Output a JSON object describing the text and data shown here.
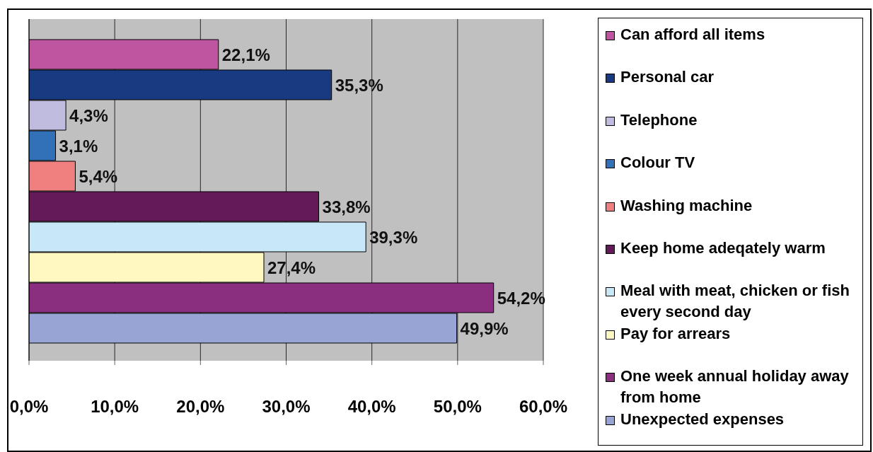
{
  "chart_data": {
    "type": "bar",
    "orientation": "horizontal",
    "categories": [
      null
    ],
    "series": [
      {
        "name": "Can afford all items",
        "color": "#bf55a0",
        "values": [
          22.1
        ],
        "value_labels": [
          "22,1%"
        ]
      },
      {
        "name": "Personal car",
        "color": "#173a80",
        "values": [
          35.3
        ],
        "value_labels": [
          "35,3%"
        ]
      },
      {
        "name": "Telephone",
        "color": "#c0bce0",
        "values": [
          4.3
        ],
        "value_labels": [
          "4,3%"
        ]
      },
      {
        "name": "Colour TV",
        "color": "#3270b8",
        "values": [
          3.1
        ],
        "value_labels": [
          "3,1%"
        ]
      },
      {
        "name": "Washing machine",
        "color": "#f08080",
        "values": [
          5.4
        ],
        "value_labels": [
          "5,4%"
        ]
      },
      {
        "name": "Keep home adeqately warm",
        "color": "#641a58",
        "values": [
          33.8
        ],
        "value_labels": [
          "33,8%"
        ]
      },
      {
        "name": "Meal with meat, chicken or fish every second day",
        "color": "#c8e8f8",
        "values": [
          39.3
        ],
        "value_labels": [
          "39,3%"
        ]
      },
      {
        "name": "Pay for arrears",
        "color": "#fff8c0",
        "values": [
          27.4
        ],
        "value_labels": [
          "27,4%"
        ]
      },
      {
        "name": "One week annual holiday away from home",
        "color": "#8a2e80",
        "values": [
          54.2
        ],
        "value_labels": [
          "54,2%"
        ]
      },
      {
        "name": "Unexpected expenses",
        "color": "#98a4d4",
        "values": [
          49.9
        ],
        "value_labels": [
          "49,9%"
        ]
      }
    ],
    "xlim": [
      0,
      60
    ],
    "xticks": [
      {
        "value": 0,
        "label": "0,0%"
      },
      {
        "value": 10,
        "label": "10,0%"
      },
      {
        "value": 20,
        "label": "20,0%"
      },
      {
        "value": 30,
        "label": "30,0%"
      },
      {
        "value": 40,
        "label": "40,0%"
      },
      {
        "value": 50,
        "label": "50,0%"
      },
      {
        "value": 60,
        "label": "60,0%"
      }
    ],
    "grid": "x",
    "legend": "right"
  }
}
